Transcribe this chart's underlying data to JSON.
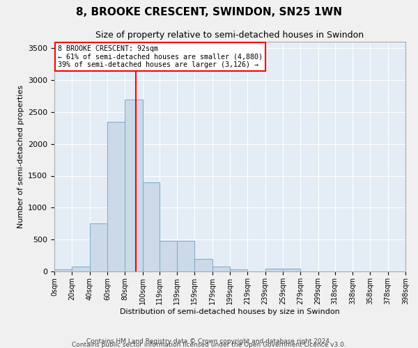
{
  "title": "8, BROOKE CRESCENT, SWINDON, SN25 1WN",
  "subtitle": "Size of property relative to semi-detached houses in Swindon",
  "xlabel": "Distribution of semi-detached houses by size in Swindon",
  "ylabel": "Number of semi-detached properties",
  "bar_color": "#ccd9e8",
  "bar_edge_color": "#7aaac8",
  "background_color": "#e4edf5",
  "grid_color": "#ffffff",
  "red_line_x": 92,
  "annotation_title": "8 BROOKE CRESCENT: 92sqm",
  "annotation_line1": "← 61% of semi-detached houses are smaller (4,880)",
  "annotation_line2": "39% of semi-detached houses are larger (3,126) →",
  "bin_edges": [
    0,
    20,
    40,
    60,
    80,
    100,
    119,
    139,
    159,
    179,
    199,
    219,
    239,
    259,
    279,
    299,
    318,
    338,
    358,
    378,
    398
  ],
  "bin_labels": [
    "0sqm",
    "20sqm",
    "40sqm",
    "60sqm",
    "80sqm",
    "100sqm",
    "119sqm",
    "139sqm",
    "159sqm",
    "179sqm",
    "199sqm",
    "219sqm",
    "239sqm",
    "259sqm",
    "279sqm",
    "299sqm",
    "318sqm",
    "338sqm",
    "358sqm",
    "378sqm",
    "398sqm"
  ],
  "counts": [
    30,
    80,
    750,
    2350,
    2700,
    1400,
    480,
    480,
    200,
    80,
    30,
    0,
    40,
    40,
    0,
    0,
    0,
    0,
    0,
    0
  ],
  "ylim": [
    0,
    3600
  ],
  "yticks": [
    0,
    500,
    1000,
    1500,
    2000,
    2500,
    3000,
    3500
  ],
  "footer1": "Contains HM Land Registry data © Crown copyright and database right 2024.",
  "footer2": "Contains public sector information licensed under the Open Government Licence v3.0."
}
